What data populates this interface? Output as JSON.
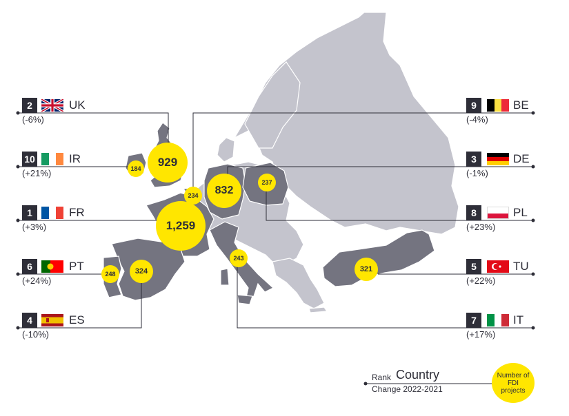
{
  "colors": {
    "land": "#c4c4cd",
    "highlight": "#747480",
    "bubble": "#ffe600",
    "dark": "#2e2e38"
  },
  "left_countries": [
    {
      "rank": "2",
      "code": "UK",
      "change": "(-6%)",
      "projects": "929",
      "flag": "uk-flag"
    },
    {
      "rank": "10",
      "code": "IR",
      "change": "(+21%)",
      "projects": "184",
      "flag": "ireland-flag"
    },
    {
      "rank": "1",
      "code": "FR",
      "change": "(+3%)",
      "projects": "1,259",
      "flag": "france-flag"
    },
    {
      "rank": "6",
      "code": "PT",
      "change": "(+24%)",
      "projects": "248",
      "flag": "portugal-flag"
    },
    {
      "rank": "4",
      "code": "ES",
      "change": "(-10%)",
      "projects": "324",
      "flag": "spain-flag"
    }
  ],
  "right_countries": [
    {
      "rank": "9",
      "code": "BE",
      "change": "(-4%)",
      "projects": "234",
      "flag": "belgium-flag"
    },
    {
      "rank": "3",
      "code": "DE",
      "change": "(-1%)",
      "projects": "832",
      "flag": "germany-flag"
    },
    {
      "rank": "8",
      "code": "PL",
      "change": "(+23%)",
      "projects": "237",
      "flag": "poland-flag"
    },
    {
      "rank": "5",
      "code": "TU",
      "change": "(+22%)",
      "projects": "321",
      "flag": "turkey-flag"
    },
    {
      "rank": "7",
      "code": "IT",
      "change": "(+17%)",
      "projects": "243",
      "flag": "italy-flag"
    }
  ],
  "legend": {
    "rank_label": "Rank",
    "country_label": "Country",
    "change_label": "Change 2022-2021",
    "bubble_label": "Number of FDI projects"
  }
}
